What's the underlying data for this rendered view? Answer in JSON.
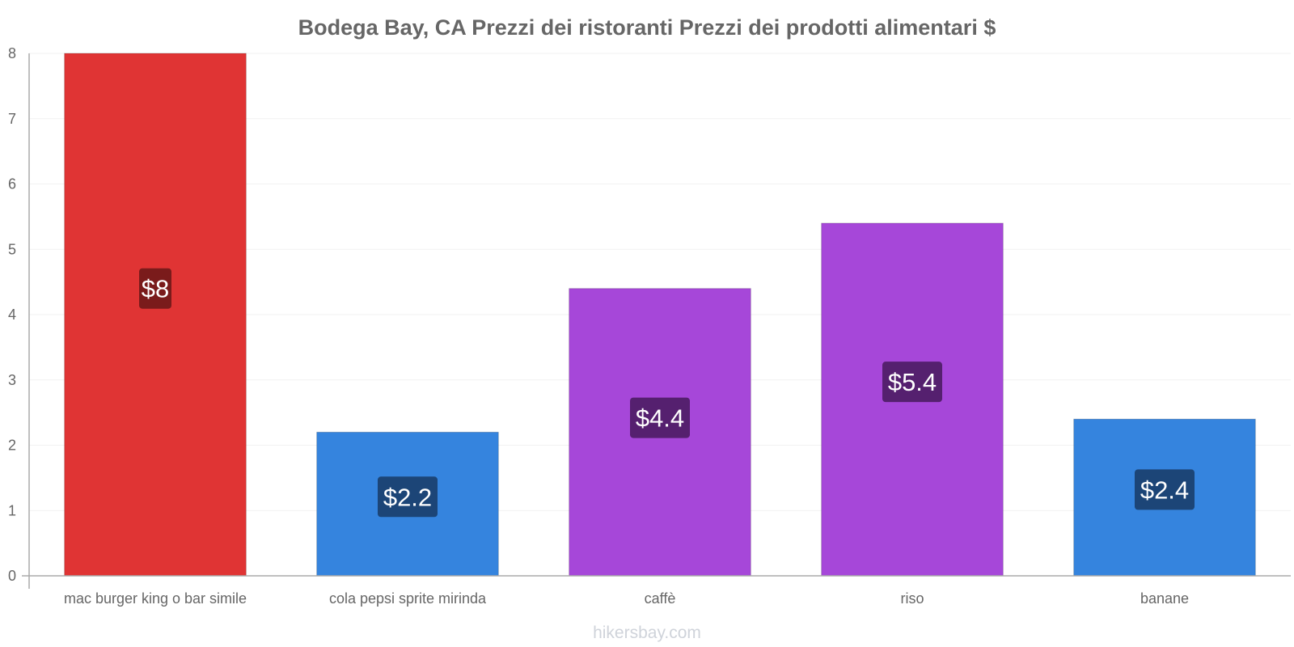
{
  "chart_data": {
    "type": "bar",
    "title": "Bodega Bay, CA Prezzi dei ristoranti Prezzi dei prodotti alimentari $",
    "categories": [
      "mac burger king o bar simile",
      "cola pepsi sprite mirinda",
      "caffè",
      "riso",
      "banane"
    ],
    "values": [
      8,
      2.2,
      4.4,
      5.4,
      2.4
    ],
    "data_labels": [
      "$8",
      "$2.2",
      "$4.4",
      "$5.4",
      "$2.4"
    ],
    "bar_colors": [
      "#e03434",
      "#3584de",
      "#a647d9",
      "#a647d9",
      "#3584de"
    ],
    "label_bg_colors": [
      "#7a1b1b",
      "#1c4577",
      "#55206f",
      "#55206f",
      "#1c4577"
    ],
    "ylim": [
      0,
      8
    ],
    "yticks": [
      "0",
      "1",
      "2",
      "3",
      "4",
      "5",
      "6",
      "7",
      "8"
    ],
    "xlabel": "",
    "ylabel": "",
    "grid": true
  },
  "watermark": "hikersbay.com"
}
